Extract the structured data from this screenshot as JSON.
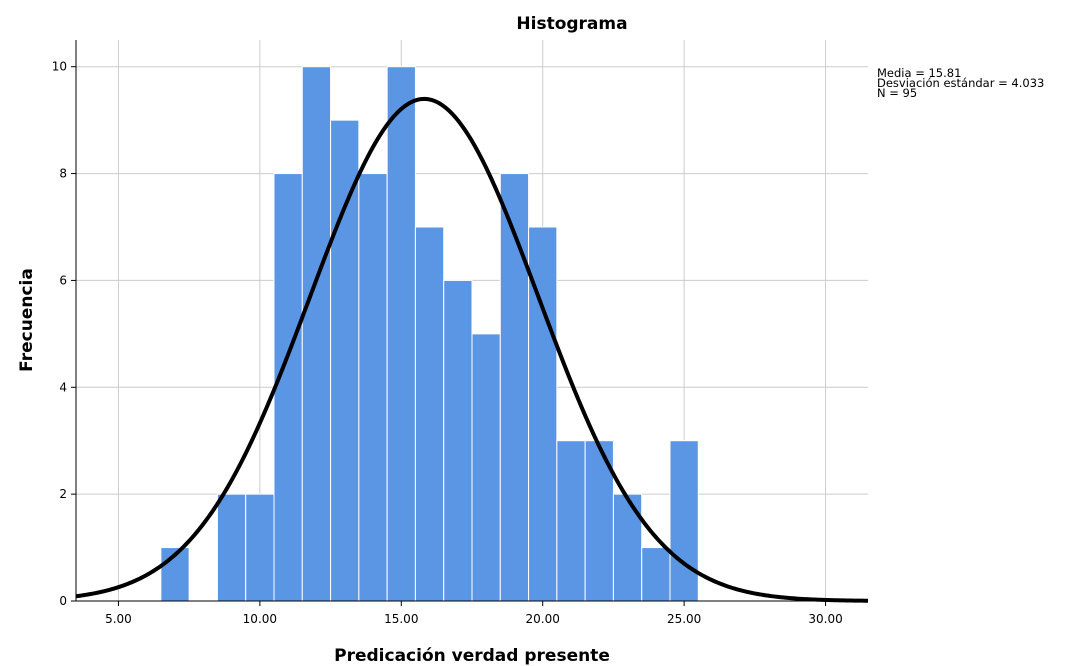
{
  "chart_data": {
    "type": "bar",
    "title": "Histograma",
    "xlabel": "Predicación verdad presente",
    "ylabel": "Frecuencia",
    "xlim": [
      3.5,
      31.5
    ],
    "ylim": [
      0,
      10.5
    ],
    "x_ticks": [
      "5.00",
      "10.00",
      "15.00",
      "20.00",
      "25.00",
      "30.00"
    ],
    "x_tick_values": [
      5,
      10,
      15,
      20,
      25,
      30
    ],
    "y_ticks": [
      "0",
      "2",
      "4",
      "6",
      "8",
      "10"
    ],
    "y_tick_values": [
      0,
      2,
      4,
      6,
      8,
      10
    ],
    "grid": true,
    "bin_width": 1,
    "bins": [
      {
        "center": 7,
        "count": 1
      },
      {
        "center": 9,
        "count": 2
      },
      {
        "center": 10,
        "count": 2
      },
      {
        "center": 11,
        "count": 8
      },
      {
        "center": 12,
        "count": 10
      },
      {
        "center": 13,
        "count": 9
      },
      {
        "center": 14,
        "count": 8
      },
      {
        "center": 15,
        "count": 10
      },
      {
        "center": 16,
        "count": 7
      },
      {
        "center": 17,
        "count": 6
      },
      {
        "center": 18,
        "count": 5
      },
      {
        "center": 19,
        "count": 8
      },
      {
        "center": 20,
        "count": 7
      },
      {
        "center": 21,
        "count": 3
      },
      {
        "center": 22,
        "count": 3
      },
      {
        "center": 23,
        "count": 2
      },
      {
        "center": 24,
        "count": 1
      },
      {
        "center": 25,
        "count": 3
      }
    ],
    "normal_curve": {
      "mean": 15.81,
      "sd": 4.033,
      "n": 95
    },
    "bar_color": "#5b96e5",
    "curve_color": "#000000"
  },
  "stats": {
    "mean_text": "Media = 15.81",
    "sd_text": "Desviación estándar = 4.033",
    "n_text": "N = 95"
  }
}
